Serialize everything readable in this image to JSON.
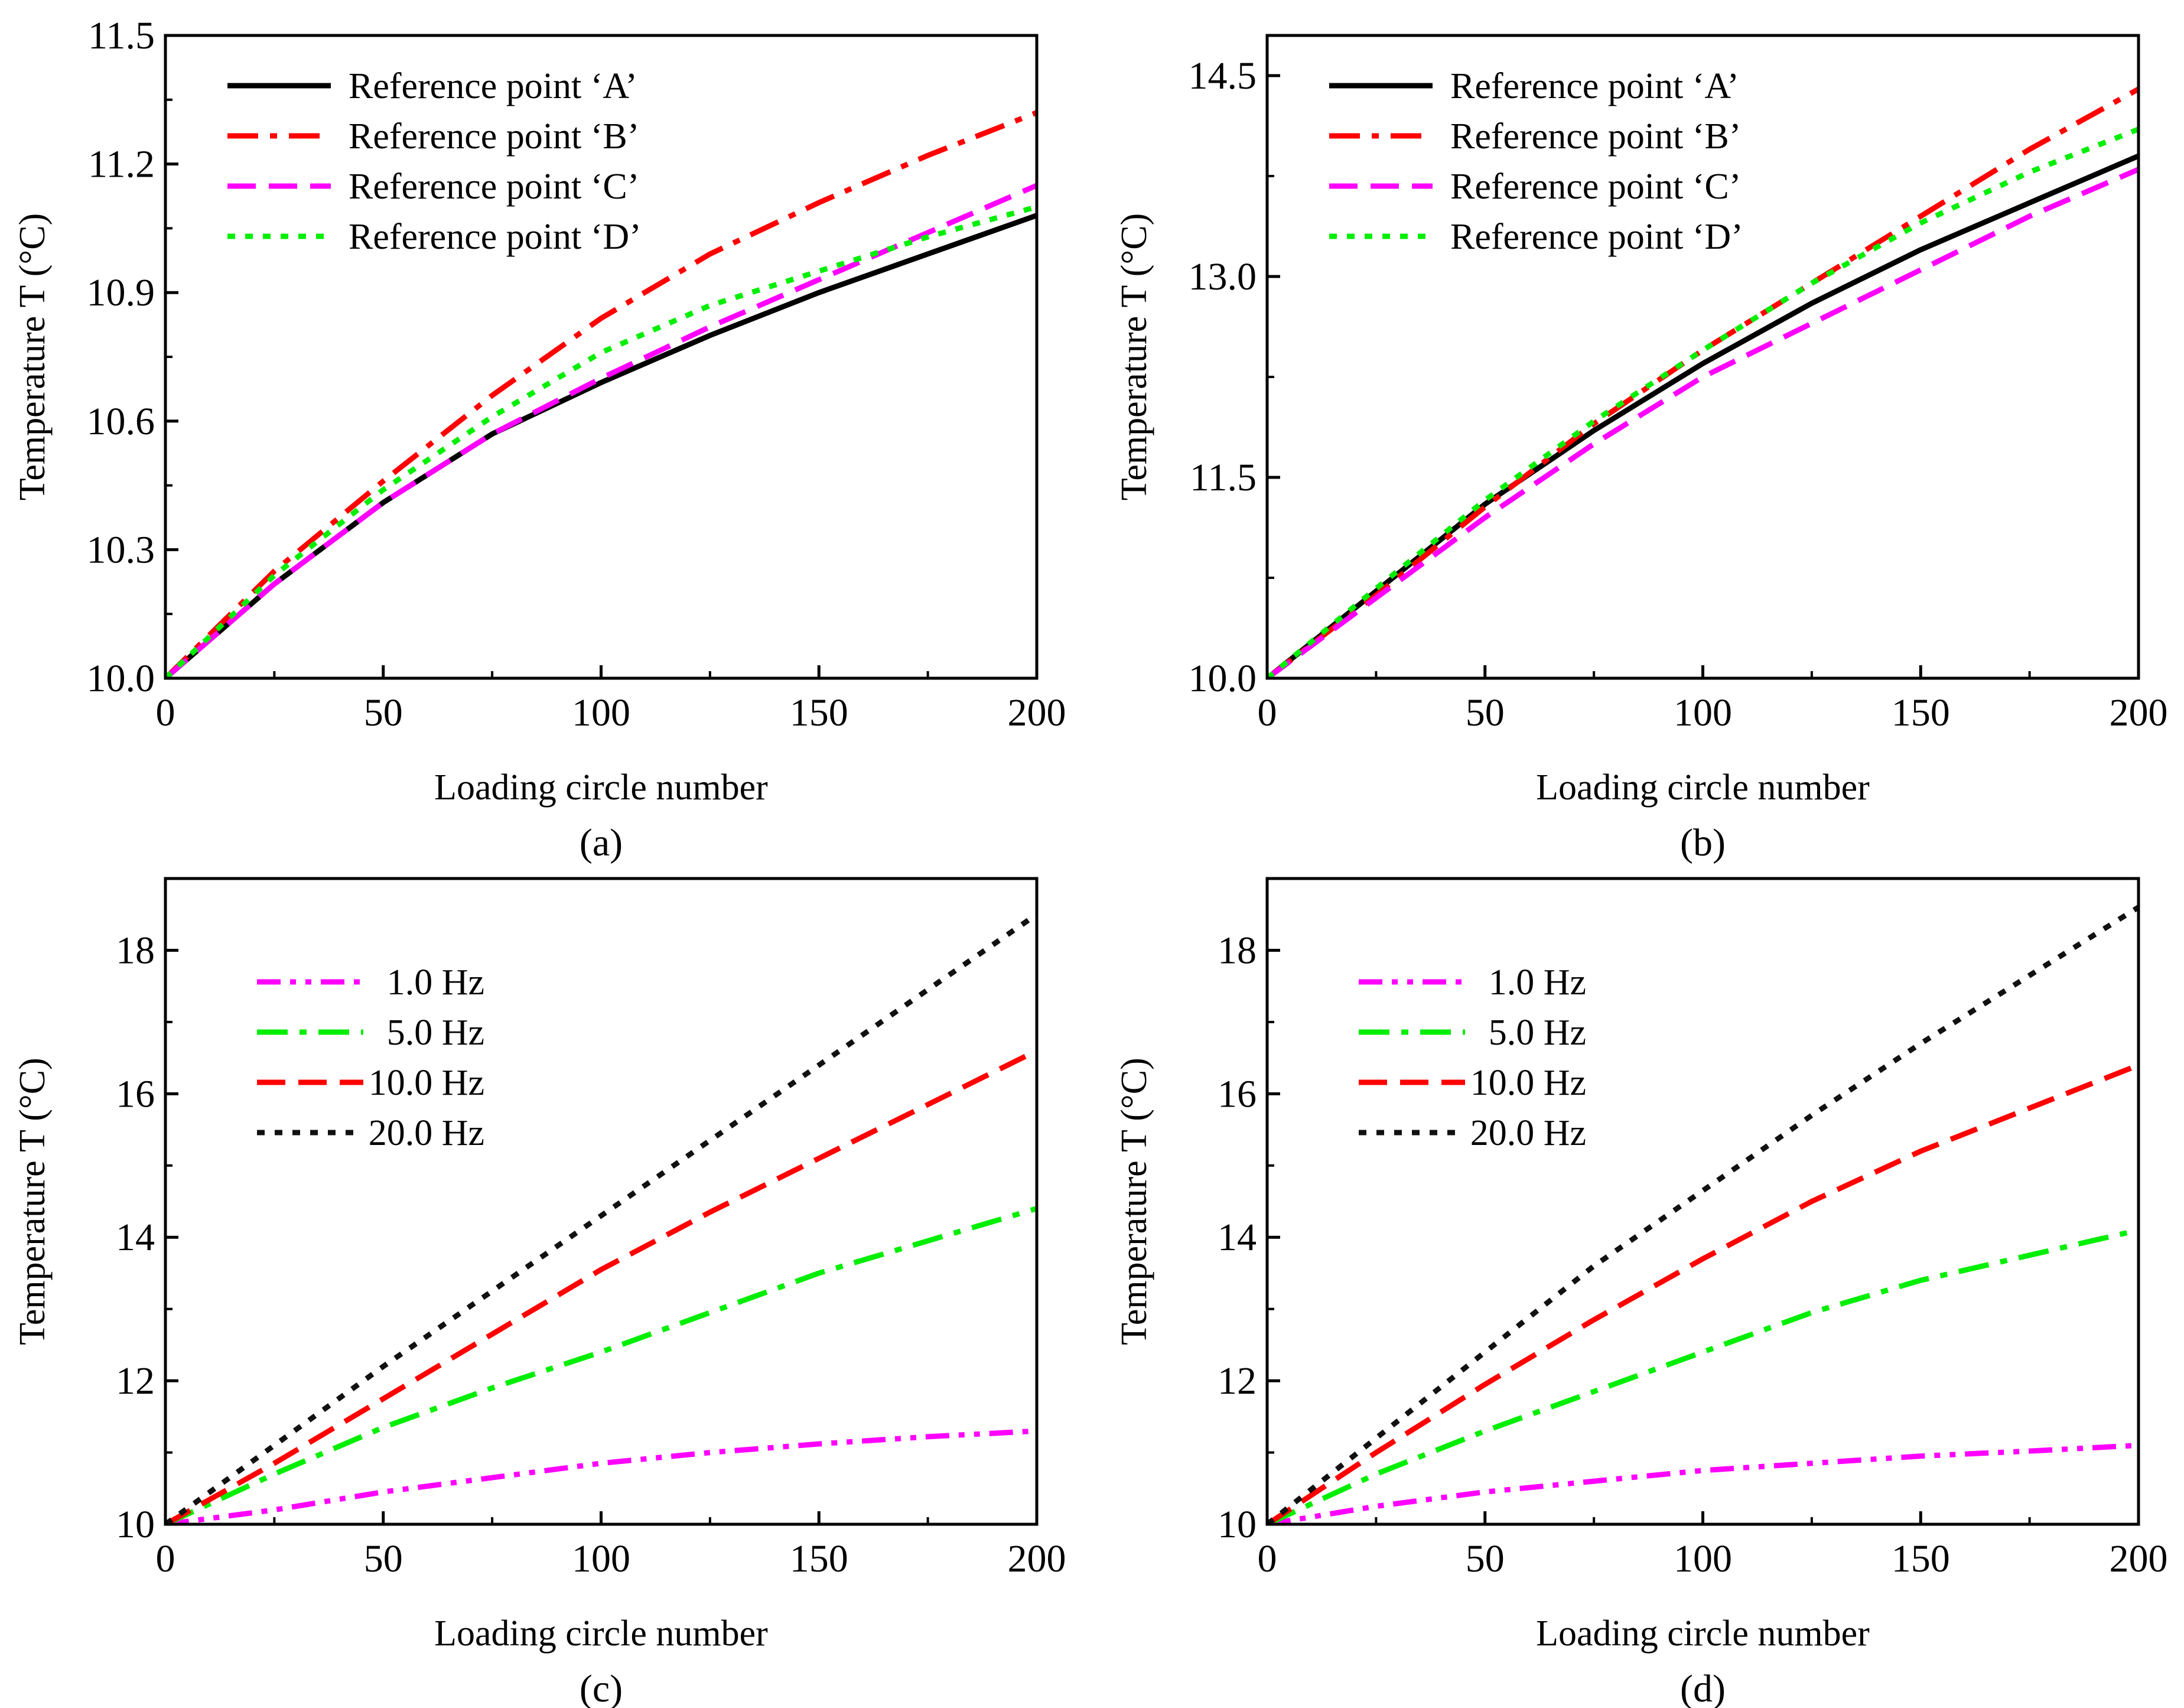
{
  "chart_data": [
    {
      "type": "line",
      "panel_label": "(a)",
      "xlabel": "Loading circle number",
      "ylabel": "Temperature  T (°C)",
      "xlim": [
        0,
        200
      ],
      "ylim": [
        10.0,
        11.5
      ],
      "xticks": [
        0,
        50,
        100,
        150,
        200
      ],
      "xtick_labels": [
        "0",
        "50",
        "100",
        "150",
        "200"
      ],
      "yticks": [
        10.0,
        10.3,
        10.6,
        10.9,
        11.2,
        11.5
      ],
      "ytick_labels": [
        "10.0",
        "10.3",
        "10.6",
        "10.9",
        "11.2",
        "11.5"
      ],
      "legend_position": "top-left",
      "x": [
        0,
        25,
        50,
        75,
        100,
        125,
        150,
        175,
        200
      ],
      "series": [
        {
          "name": "Reference point  ‘A’",
          "color": "#000000",
          "style": "solid",
          "values": [
            10.0,
            10.22,
            10.41,
            10.57,
            10.69,
            10.8,
            10.9,
            10.99,
            11.08
          ]
        },
        {
          "name": "Reference point  ‘B’",
          "color": "#ff0000",
          "style": "dashdot",
          "values": [
            10.0,
            10.25,
            10.46,
            10.66,
            10.84,
            10.99,
            11.11,
            11.22,
            11.32
          ]
        },
        {
          "name": "Reference point  ‘C’",
          "color": "#ff00ff",
          "style": "dash",
          "values": [
            10.0,
            10.22,
            10.41,
            10.57,
            10.7,
            10.82,
            10.93,
            11.04,
            11.15
          ]
        },
        {
          "name": "Reference point  ‘D’",
          "color": "#00ee00",
          "style": "dot",
          "values": [
            10.0,
            10.24,
            10.44,
            10.61,
            10.76,
            10.87,
            10.95,
            11.03,
            11.1
          ]
        }
      ]
    },
    {
      "type": "line",
      "panel_label": "(b)",
      "xlabel": "Loading circle number",
      "ylabel": "Temperature  T (°C)",
      "xlim": [
        0,
        200
      ],
      "ylim": [
        10.0,
        14.8
      ],
      "xticks": [
        0,
        50,
        100,
        150,
        200
      ],
      "xtick_labels": [
        "0",
        "50",
        "100",
        "150",
        "200"
      ],
      "yticks": [
        10.0,
        11.5,
        13.0,
        14.5
      ],
      "ytick_labels": [
        "10.0",
        "11.5",
        "13.0",
        "14.5"
      ],
      "legend_position": "top-left",
      "x": [
        0,
        25,
        50,
        75,
        100,
        125,
        150,
        175,
        200
      ],
      "series": [
        {
          "name": "Reference point  ‘A’",
          "color": "#000000",
          "style": "solid",
          "values": [
            10.0,
            10.65,
            11.3,
            11.85,
            12.35,
            12.8,
            13.2,
            13.55,
            13.9
          ]
        },
        {
          "name": "Reference point  ‘B’",
          "color": "#ff0000",
          "style": "dashdot",
          "values": [
            10.0,
            10.62,
            11.28,
            11.9,
            12.45,
            12.95,
            13.45,
            13.95,
            14.4
          ]
        },
        {
          "name": "Reference point  ‘C’",
          "color": "#ff00ff",
          "style": "dash",
          "values": [
            10.0,
            10.6,
            11.2,
            11.75,
            12.25,
            12.65,
            13.05,
            13.45,
            13.8
          ]
        },
        {
          "name": "Reference point  ‘D’",
          "color": "#00ee00",
          "style": "dot",
          "values": [
            10.0,
            10.67,
            11.33,
            11.92,
            12.45,
            12.95,
            13.4,
            13.78,
            14.1
          ]
        }
      ]
    },
    {
      "type": "line",
      "panel_label": "(c)",
      "xlabel": "Loading circle number",
      "ylabel": "Temperature  T (°C)",
      "xlim": [
        0,
        200
      ],
      "ylim": [
        10,
        19
      ],
      "xticks": [
        0,
        50,
        100,
        150,
        200
      ],
      "xtick_labels": [
        "0",
        "50",
        "100",
        "150",
        "200"
      ],
      "yticks": [
        10,
        12,
        14,
        16,
        18
      ],
      "ytick_labels": [
        "10",
        "12",
        "14",
        "16",
        "18"
      ],
      "legend_position": "top-left",
      "x": [
        0,
        25,
        50,
        75,
        100,
        125,
        150,
        175,
        200
      ],
      "series": [
        {
          "name": "1.0  Hz",
          "color": "#ff00ff",
          "style": "dashdotdot",
          "values": [
            10.0,
            10.2,
            10.45,
            10.65,
            10.85,
            11.0,
            11.12,
            11.22,
            11.3
          ]
        },
        {
          "name": "5.0  Hz",
          "color": "#00ee00",
          "style": "dashdot",
          "values": [
            10.0,
            10.7,
            11.35,
            11.9,
            12.4,
            12.95,
            13.5,
            13.95,
            14.4
          ]
        },
        {
          "name": "10.0  Hz",
          "color": "#ff0000",
          "style": "dash",
          "values": [
            10.0,
            10.85,
            11.75,
            12.65,
            13.55,
            14.35,
            15.1,
            15.85,
            16.6
          ]
        },
        {
          "name": "20.0  Hz",
          "color": "#111111",
          "style": "dot",
          "values": [
            10.0,
            11.1,
            12.2,
            13.25,
            14.3,
            15.35,
            16.4,
            17.45,
            18.5
          ]
        }
      ]
    },
    {
      "type": "line",
      "panel_label": "(d)",
      "xlabel": "Loading circle number",
      "ylabel": "Temperature T (°C)",
      "xlim": [
        0,
        200
      ],
      "ylim": [
        10,
        19
      ],
      "xticks": [
        0,
        50,
        100,
        150,
        200
      ],
      "xtick_labels": [
        "0",
        "50",
        "100",
        "150",
        "200"
      ],
      "yticks": [
        10,
        12,
        14,
        16,
        18
      ],
      "ytick_labels": [
        "10",
        "12",
        "14",
        "16",
        "18"
      ],
      "legend_position": "top-left",
      "x": [
        0,
        25,
        50,
        75,
        100,
        125,
        150,
        175,
        200
      ],
      "series": [
        {
          "name": "1.0  Hz",
          "color": "#ff00ff",
          "style": "dashdotdot",
          "values": [
            10.0,
            10.25,
            10.45,
            10.6,
            10.75,
            10.85,
            10.95,
            11.02,
            11.1
          ]
        },
        {
          "name": "5.0  Hz",
          "color": "#00ee00",
          "style": "dashdot",
          "values": [
            10.0,
            10.7,
            11.3,
            11.85,
            12.4,
            12.95,
            13.4,
            13.75,
            14.1
          ]
        },
        {
          "name": "10.0  Hz",
          "color": "#ff0000",
          "style": "dash",
          "values": [
            10.0,
            11.0,
            11.95,
            12.85,
            13.7,
            14.5,
            15.2,
            15.8,
            16.4
          ]
        },
        {
          "name": "20.0  Hz",
          "color": "#111111",
          "style": "dot",
          "values": [
            10.0,
            11.2,
            12.4,
            13.6,
            14.65,
            15.7,
            16.7,
            17.65,
            18.6
          ]
        }
      ]
    }
  ]
}
